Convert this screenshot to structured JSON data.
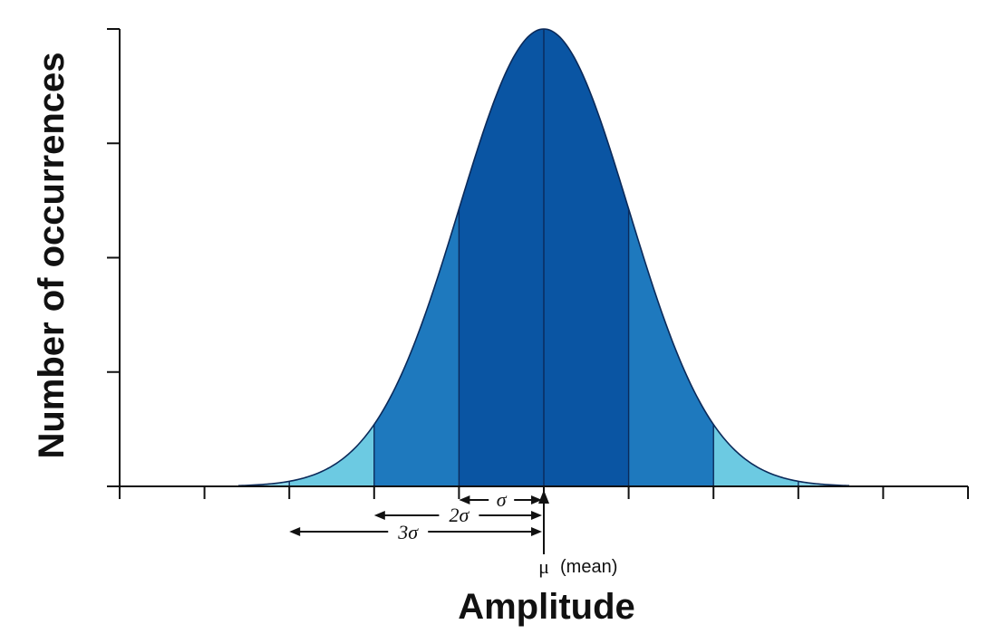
{
  "chart_data": {
    "type": "area",
    "title": "",
    "xlabel": "Amplitude",
    "ylabel": "Number of occurrences",
    "xlim": [
      -5,
      5
    ],
    "ylim": [
      0,
      1
    ],
    "grid": false,
    "mean": 0,
    "sigma": 1,
    "x": [
      -5,
      -4.5,
      -4,
      -3.5,
      -3,
      -2.5,
      -2,
      -1.5,
      -1,
      -0.5,
      0,
      0.5,
      1,
      1.5,
      2,
      2.5,
      3,
      3.5,
      4,
      4.5,
      5
    ],
    "y": [
      0.0,
      0.0,
      0.0003,
      0.0022,
      0.0111,
      0.0439,
      0.1353,
      0.3247,
      0.6065,
      0.8825,
      1.0,
      0.8825,
      0.6065,
      0.3247,
      0.1353,
      0.0439,
      0.0111,
      0.0022,
      0.0003,
      0.0,
      0.0
    ],
    "bands": [
      {
        "from": -1,
        "to": 1,
        "color": "#0a55a3"
      },
      {
        "from": -2,
        "to": -1,
        "color": "#1e79be"
      },
      {
        "from": 1,
        "to": 2,
        "color": "#1e79be"
      },
      {
        "from": -3,
        "to": -2,
        "color": "#6ccae2"
      },
      {
        "from": 2,
        "to": 3,
        "color": "#6ccae2"
      }
    ],
    "tail_color": "#8ed9ec",
    "y_ticks": [
      0,
      0.25,
      0.5,
      0.75,
      1
    ],
    "x_ticks": [
      -5,
      -4,
      -3,
      -2,
      -1,
      0,
      1,
      2,
      3,
      4,
      5
    ],
    "annotations": {
      "sigma": "σ",
      "two_sigma": "2σ",
      "three_sigma": "3σ",
      "mu": "μ",
      "mean_label": "(mean)"
    }
  }
}
